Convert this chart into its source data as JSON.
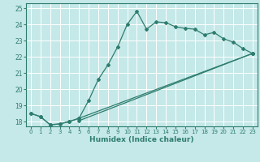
{
  "xlabel": "Humidex (Indice chaleur)",
  "bg_color": "#c5e8e8",
  "grid_color": "#ffffff",
  "line_color": "#2e7d6e",
  "xlim": [
    -0.5,
    23.5
  ],
  "ylim": [
    17.7,
    25.3
  ],
  "yticks": [
    18,
    19,
    20,
    21,
    22,
    23,
    24,
    25
  ],
  "xticks": [
    0,
    1,
    2,
    3,
    4,
    5,
    6,
    7,
    8,
    9,
    10,
    11,
    12,
    13,
    14,
    15,
    16,
    17,
    18,
    19,
    20,
    21,
    22,
    23
  ],
  "series1_x": [
    0,
    1,
    2,
    3,
    4,
    5,
    6,
    7,
    8,
    9,
    10,
    11,
    12,
    13,
    14,
    15,
    16,
    17,
    18,
    19,
    20,
    21,
    22,
    23
  ],
  "series1_y": [
    18.5,
    18.3,
    17.8,
    17.85,
    18.0,
    18.2,
    19.3,
    20.6,
    21.5,
    22.6,
    24.0,
    24.8,
    23.7,
    24.15,
    24.1,
    23.85,
    23.75,
    23.7,
    23.35,
    23.5,
    23.1,
    22.9,
    22.5,
    22.2
  ],
  "line2_x": [
    0,
    1,
    2,
    3,
    4,
    5,
    23
  ],
  "line2_y": [
    18.5,
    18.3,
    17.8,
    17.85,
    18.0,
    18.2,
    22.2
  ],
  "line3_x": [
    5,
    23
  ],
  "line3_y": [
    18.05,
    22.2
  ]
}
